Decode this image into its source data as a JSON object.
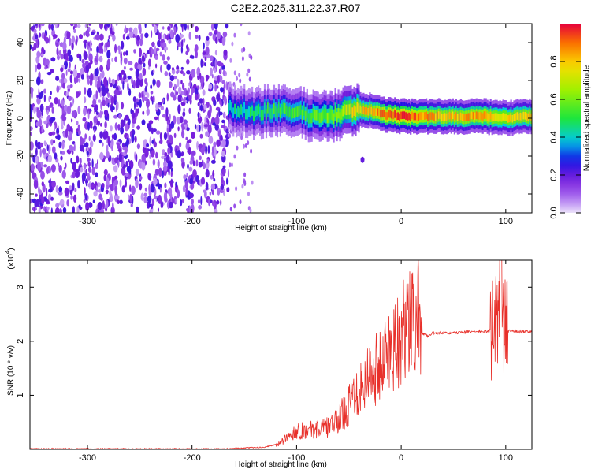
{
  "title": "C2E2.2025.311.22.37.R07",
  "chart_data": [
    {
      "type": "heatmap",
      "name": "spectrogram",
      "xlabel": "Height of straight line (km)",
      "ylabel": "Frequency (Hz)",
      "xlim": [
        -355,
        125
      ],
      "ylim": [
        -50,
        50
      ],
      "xticks": [
        -300,
        -200,
        -100,
        0,
        100
      ],
      "yticks": [
        -40,
        -20,
        0,
        20,
        40
      ],
      "colorbar": {
        "label": "Normalized spectral amplitude",
        "range": [
          0,
          1
        ],
        "ticks": [
          0.0,
          0.2,
          0.4,
          0.6,
          0.8
        ]
      },
      "noise_region_x": [
        -355,
        -165
      ],
      "signal_track": [
        {
          "x": -165,
          "freq": 5,
          "amp": 0.35
        },
        {
          "x": -140,
          "freq": 3,
          "amp": 0.4
        },
        {
          "x": -120,
          "freq": 4,
          "amp": 0.45
        },
        {
          "x": -100,
          "freq": 3,
          "amp": 0.45
        },
        {
          "x": -80,
          "freq": 1,
          "amp": 0.5
        },
        {
          "x": -60,
          "freq": 2,
          "amp": 0.55
        },
        {
          "x": -45,
          "freq": 5,
          "amp": 0.7
        },
        {
          "x": -30,
          "freq": 4,
          "amp": 0.75
        },
        {
          "x": -15,
          "freq": 2,
          "amp": 0.85
        },
        {
          "x": 0,
          "freq": 1,
          "amp": 0.9
        },
        {
          "x": 20,
          "freq": 1,
          "amp": 0.8
        },
        {
          "x": 50,
          "freq": 1,
          "amp": 0.75
        },
        {
          "x": 80,
          "freq": 1,
          "amp": 0.8
        },
        {
          "x": 95,
          "freq": 0,
          "amp": 0.7
        },
        {
          "x": 125,
          "freq": 1,
          "amp": 0.75
        }
      ]
    },
    {
      "type": "line",
      "name": "snr",
      "xlabel": "Height of straight line (km)",
      "ylabel": "SNR (10 * v/v)",
      "y_multiplier": "(x10",
      "y_multiplier_exp": "4",
      "xlim": [
        -355,
        125
      ],
      "ylim": [
        0,
        3.5
      ],
      "xticks": [
        -300,
        -200,
        -100,
        0,
        100
      ],
      "yticks": [
        1,
        2,
        3
      ],
      "color": "#e8302a",
      "series": [
        {
          "name": "SNR",
          "x": [
            -355,
            -170,
            -130,
            -115,
            -105,
            -100,
            -90,
            -80,
            -70,
            -60,
            -55,
            -50,
            -45,
            -40,
            -35,
            -30,
            -25,
            -20,
            -15,
            -10,
            -5,
            0,
            5,
            10,
            15,
            20,
            25,
            30,
            40,
            50,
            60,
            70,
            80,
            85,
            90,
            93,
            95,
            97,
            100,
            110,
            125
          ],
          "y": [
            0.0,
            0.0,
            0.03,
            0.1,
            0.25,
            0.3,
            0.3,
            0.32,
            0.35,
            0.45,
            0.6,
            0.7,
            0.9,
            1.0,
            1.1,
            1.2,
            1.3,
            1.3,
            1.5,
            1.6,
            1.75,
            1.8,
            1.9,
            2.0,
            2.1,
            2.15,
            2.1,
            2.15,
            2.15,
            2.15,
            2.17,
            2.18,
            2.18,
            2.2,
            2.25,
            2.6,
            2.4,
            2.2,
            2.2,
            2.18,
            2.18
          ]
        }
      ]
    }
  ]
}
